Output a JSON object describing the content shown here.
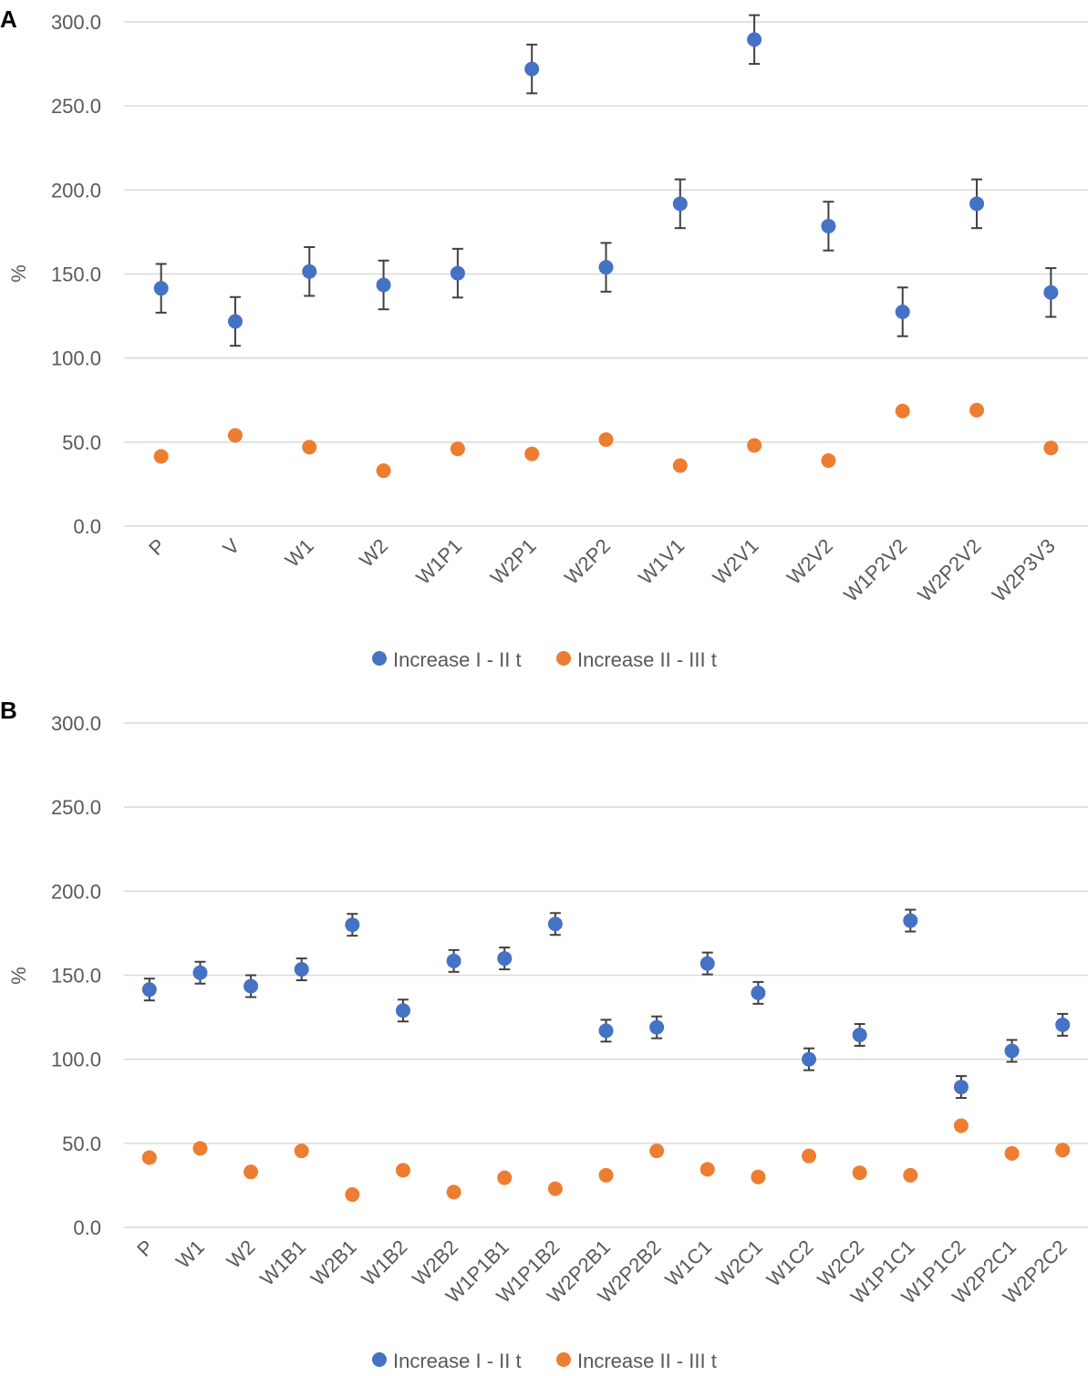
{
  "colors": {
    "series1": "#4472C4",
    "series2": "#ED7D31",
    "grid": "#D9D9D9",
    "text": "#595959",
    "errorbar": "#404040"
  },
  "chart_data": [
    {
      "panel": "A",
      "type": "scatter",
      "ylabel": "%",
      "ylim": [
        0,
        300
      ],
      "yticks": [
        "0.0",
        "50.0",
        "100.0",
        "150.0",
        "200.0",
        "250.0",
        "300.0"
      ],
      "grid": true,
      "legend_position": "bottom",
      "categories": [
        "P",
        "V",
        "W1",
        "W2",
        "W1P1",
        "W2P1",
        "W2P2",
        "W1V1",
        "W2V1",
        "W2V2",
        "W1P2V2",
        "W2P2V2",
        "W2P3V3"
      ],
      "series": [
        {
          "name": "Increase I - II t",
          "color": "#4472C4",
          "values": [
            141.5,
            121.8,
            151.5,
            143.5,
            150.5,
            272,
            154,
            191.8,
            289.5,
            178.5,
            127.5,
            191.8,
            139
          ],
          "errors": [
            14.5,
            14.5,
            14.5,
            14.5,
            14.5,
            14.5,
            14.5,
            14.5,
            14.5,
            14.5,
            14.5,
            14.5,
            14.5
          ]
        },
        {
          "name": "Increase II - III t",
          "color": "#ED7D31",
          "values": [
            41.5,
            54,
            47,
            33,
            46,
            43,
            51.5,
            36,
            48,
            39,
            68.5,
            69,
            46.5
          ]
        }
      ]
    },
    {
      "panel": "B",
      "type": "scatter",
      "ylabel": "%",
      "ylim": [
        0,
        300
      ],
      "yticks": [
        "0.0",
        "50.0",
        "100.0",
        "150.0",
        "200.0",
        "250.0",
        "300.0"
      ],
      "grid": true,
      "legend_position": "bottom",
      "categories": [
        "P",
        "W1",
        "W2",
        "W1B1",
        "W2B1",
        "W1B2",
        "W2B2",
        "W1P1B1",
        "W1P1B2",
        "W2P2B1",
        "W2P2B2",
        "W1C1",
        "W2C1",
        "W1C2",
        "W2C2",
        "W1P1C1",
        "W1P1C2",
        "W2P2C1",
        "W2P2C2"
      ],
      "series": [
        {
          "name": "Increase I - II t",
          "color": "#4472C4",
          "values": [
            141.5,
            151.5,
            143.5,
            153.5,
            180,
            129,
            158.5,
            160,
            180.5,
            117,
            119,
            157,
            139.5,
            100,
            114.5,
            182.5,
            83.5,
            105,
            120.5
          ],
          "errors": [
            6.5,
            6.5,
            6.5,
            6.5,
            6.5,
            6.5,
            6.5,
            6.5,
            6.5,
            6.5,
            6.5,
            6.5,
            6.5,
            6.5,
            6.5,
            6.5,
            6.5,
            6.5,
            6.5
          ]
        },
        {
          "name": "Increase II - III t",
          "color": "#ED7D31",
          "values": [
            41.5,
            47,
            33,
            45.5,
            19.5,
            34,
            21,
            29.5,
            23,
            31,
            45.5,
            34.5,
            30,
            42.5,
            32.5,
            31,
            60.5,
            44,
            46
          ]
        }
      ]
    }
  ]
}
